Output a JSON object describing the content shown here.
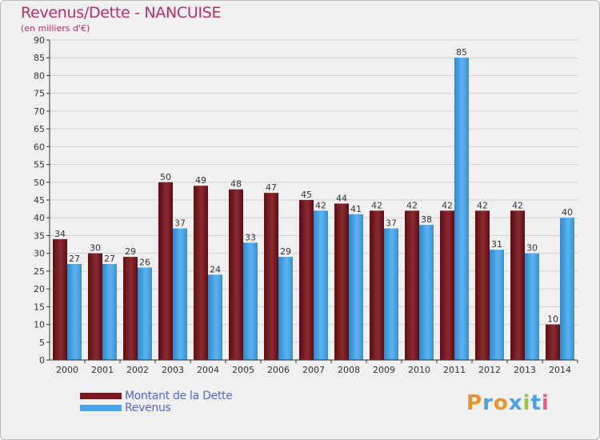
{
  "header": {
    "title": "Revenus/Dette - NANCUISE",
    "subtitle": "(en milliers d'€)"
  },
  "legend": {
    "items": [
      {
        "label": "Montant de la Dette",
        "color": "#7a1a20"
      },
      {
        "label": "Revenus",
        "color": "#4aa3e6"
      }
    ]
  },
  "logo": {
    "letters": [
      {
        "ch": "P",
        "color": "#e8942a"
      },
      {
        "ch": "r",
        "color": "#4aa3e6"
      },
      {
        "ch": "o",
        "color": "#e8942a"
      },
      {
        "ch": "x",
        "color": "#4aa3e6"
      },
      {
        "ch": "i",
        "color": "#9ac63c"
      },
      {
        "ch": "t",
        "color": "#4aa3e6"
      },
      {
        "ch": "i",
        "color": "#e85a8a"
      }
    ]
  },
  "chart_data": {
    "type": "bar",
    "categories": [
      "2000",
      "2001",
      "2002",
      "2003",
      "2004",
      "2005",
      "2006",
      "2007",
      "2008",
      "2009",
      "2010",
      "2011",
      "2012",
      "2013",
      "2014"
    ],
    "series": [
      {
        "name": "Montant de la Dette",
        "color": "#7a1a20",
        "values": [
          34,
          30,
          29,
          50,
          49,
          48,
          47,
          45,
          44,
          42,
          42,
          42,
          42,
          42,
          10
        ]
      },
      {
        "name": "Revenus",
        "color": "#4aa3e6",
        "values": [
          27,
          27,
          26,
          37,
          24,
          33,
          29,
          42,
          41,
          37,
          38,
          85,
          31,
          30,
          40
        ]
      }
    ],
    "ylim": [
      0,
      90
    ],
    "ytick_step": 5,
    "grid": true,
    "legend": "bottom-left"
  }
}
